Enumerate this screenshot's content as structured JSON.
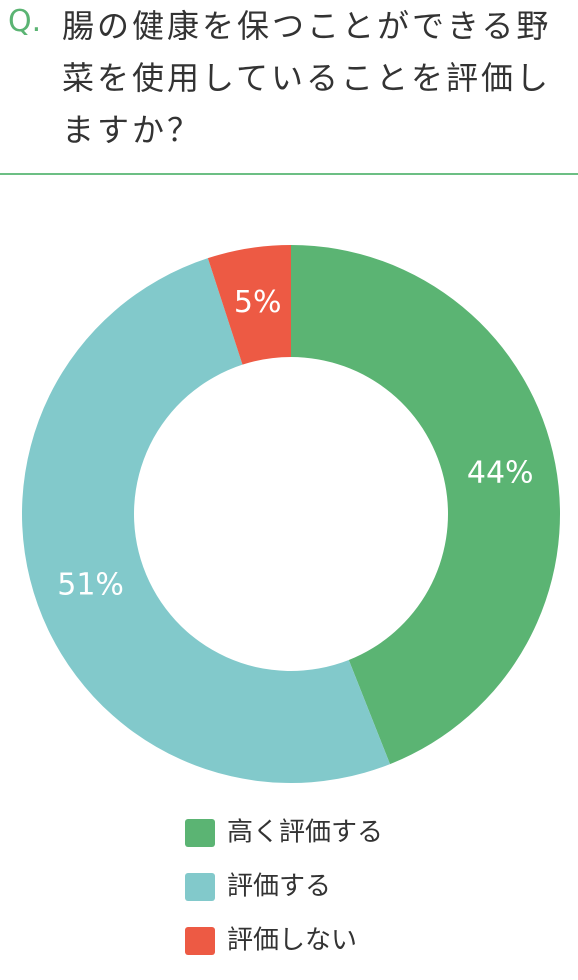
{
  "chart_data": {
    "type": "pie",
    "question_label": "Q.",
    "title": "腸の健康を保つことができる野菜を使用していることを評価しますか？",
    "categories": [
      "高く評価する",
      "評価する",
      "評価しない"
    ],
    "values": [
      44,
      51,
      5
    ],
    "value_labels": [
      "44%",
      "51%",
      "5%"
    ],
    "colors": [
      "#5bb473",
      "#82c9cb",
      "#ed5a44"
    ],
    "donut": true
  }
}
